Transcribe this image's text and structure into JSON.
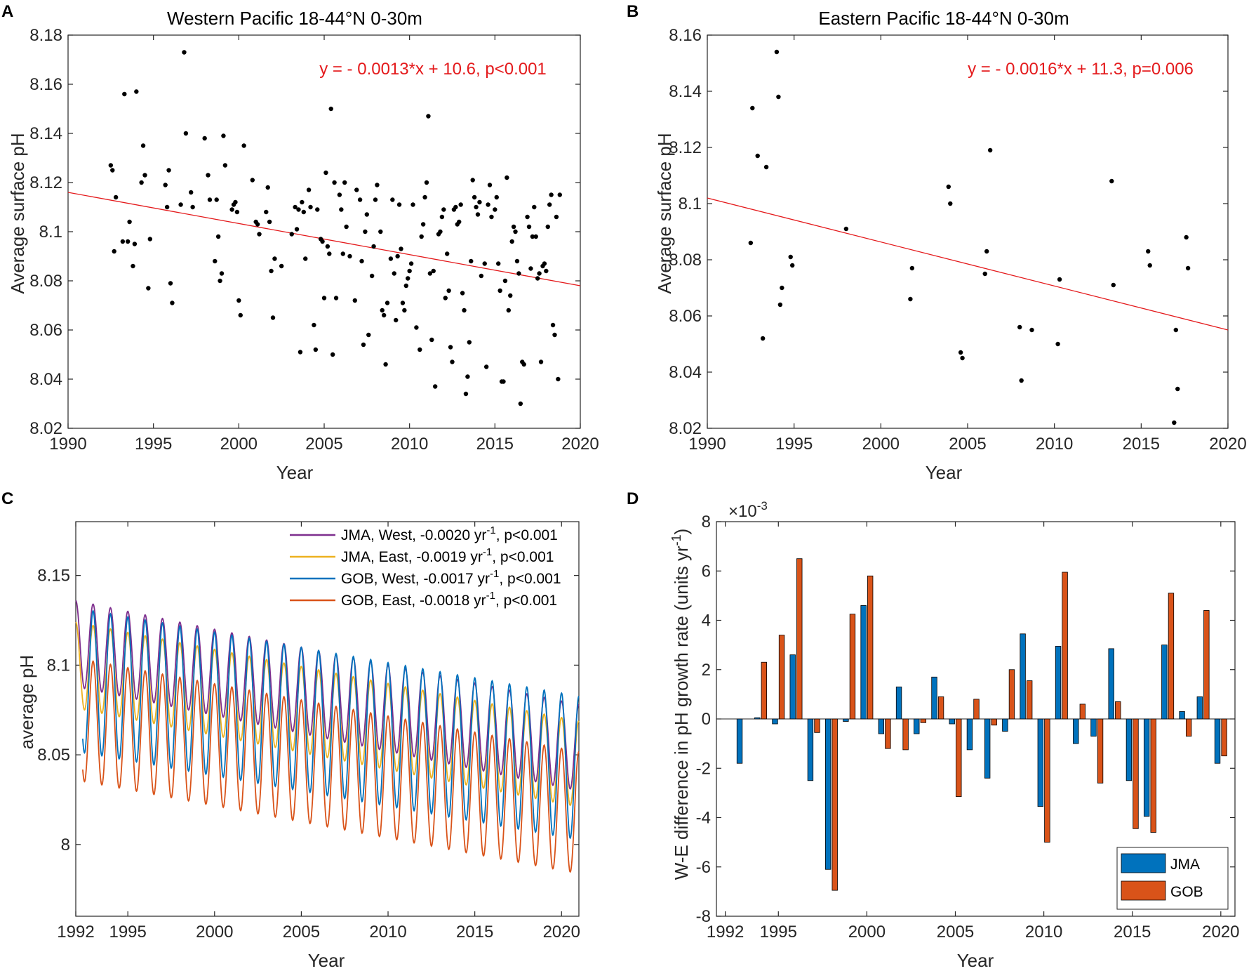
{
  "figure": {
    "panel_labels": [
      "A",
      "B",
      "C",
      "D"
    ]
  },
  "chart_data": [
    {
      "id": "A",
      "type": "scatter",
      "title": "Western Pacific 18-44°N 0-30m",
      "xlabel": "Year",
      "ylabel": "Average surface pH",
      "xlim": [
        1990,
        2020
      ],
      "ylim": [
        8.02,
        8.18
      ],
      "xticks": [
        1990,
        1995,
        2000,
        2005,
        2010,
        2015,
        2020
      ],
      "yticks": [
        8.02,
        8.04,
        8.06,
        8.08,
        8.1,
        8.12,
        8.14,
        8.16,
        8.18
      ],
      "ytick_labels": [
        "8.02",
        "8.04",
        "8.06",
        "8.08",
        "8.1",
        "8.12",
        "8.14",
        "8.16",
        "8.18"
      ],
      "annotation": "y = - 0.0013*x + 10.6, p<0.001",
      "fit": {
        "x": [
          1990,
          2020
        ],
        "y": [
          8.116,
          8.078
        ],
        "color": "#e41a1c"
      },
      "points": [
        [
          1992.5,
          8.127
        ],
        [
          1992.6,
          8.125
        ],
        [
          1992.7,
          8.092
        ],
        [
          1992.8,
          8.114
        ],
        [
          1993.2,
          8.096
        ],
        [
          1993.3,
          8.156
        ],
        [
          1993.5,
          8.096
        ],
        [
          1993.6,
          8.104
        ],
        [
          1993.8,
          8.086
        ],
        [
          1993.9,
          8.095
        ],
        [
          1994.0,
          8.157
        ],
        [
          1994.3,
          8.12
        ],
        [
          1994.4,
          8.135
        ],
        [
          1994.5,
          8.123
        ],
        [
          1994.7,
          8.077
        ],
        [
          1994.8,
          8.097
        ],
        [
          1995.7,
          8.119
        ],
        [
          1995.8,
          8.11
        ],
        [
          1995.9,
          8.125
        ],
        [
          1996.0,
          8.079
        ],
        [
          1996.1,
          8.071
        ],
        [
          1996.6,
          8.111
        ],
        [
          1996.8,
          8.173
        ],
        [
          1996.9,
          8.14
        ],
        [
          1997.2,
          8.116
        ],
        [
          1997.3,
          8.11
        ],
        [
          1998.0,
          8.138
        ],
        [
          1998.2,
          8.123
        ],
        [
          1998.3,
          8.113
        ],
        [
          1998.6,
          8.088
        ],
        [
          1998.7,
          8.113
        ],
        [
          1998.8,
          8.098
        ],
        [
          1998.9,
          8.08
        ],
        [
          1999.0,
          8.083
        ],
        [
          1999.1,
          8.139
        ],
        [
          1999.2,
          8.127
        ],
        [
          1999.6,
          8.109
        ],
        [
          1999.7,
          8.111
        ],
        [
          1999.8,
          8.112
        ],
        [
          1999.9,
          8.108
        ],
        [
          2000.0,
          8.072
        ],
        [
          2000.1,
          8.066
        ],
        [
          2000.3,
          8.135
        ],
        [
          2000.8,
          8.121
        ],
        [
          2001.0,
          8.104
        ],
        [
          2001.1,
          8.103
        ],
        [
          2001.2,
          8.099
        ],
        [
          2001.6,
          8.108
        ],
        [
          2001.7,
          8.118
        ],
        [
          2001.8,
          8.104
        ],
        [
          2001.9,
          8.084
        ],
        [
          2002.0,
          8.065
        ],
        [
          2002.1,
          8.089
        ],
        [
          2002.5,
          8.086
        ],
        [
          2003.1,
          8.099
        ],
        [
          2003.3,
          8.11
        ],
        [
          2003.4,
          8.101
        ],
        [
          2003.5,
          8.109
        ],
        [
          2003.6,
          8.051
        ],
        [
          2003.7,
          8.112
        ],
        [
          2003.8,
          8.108
        ],
        [
          2003.9,
          8.089
        ],
        [
          2004.1,
          8.117
        ],
        [
          2004.2,
          8.11
        ],
        [
          2004.4,
          8.062
        ],
        [
          2004.5,
          8.052
        ],
        [
          2004.6,
          8.109
        ],
        [
          2004.8,
          8.097
        ],
        [
          2004.9,
          8.096
        ],
        [
          2005.0,
          8.073
        ],
        [
          2005.1,
          8.124
        ],
        [
          2005.2,
          8.094
        ],
        [
          2005.3,
          8.091
        ],
        [
          2005.4,
          8.15
        ],
        [
          2005.5,
          8.05
        ],
        [
          2005.6,
          8.12
        ],
        [
          2005.7,
          8.073
        ],
        [
          2005.9,
          8.115
        ],
        [
          2006.0,
          8.109
        ],
        [
          2006.1,
          8.091
        ],
        [
          2006.2,
          8.12
        ],
        [
          2006.3,
          8.102
        ],
        [
          2006.5,
          8.09
        ],
        [
          2006.8,
          8.072
        ],
        [
          2006.9,
          8.117
        ],
        [
          2007.1,
          8.113
        ],
        [
          2007.2,
          8.088
        ],
        [
          2007.3,
          8.054
        ],
        [
          2007.4,
          8.1
        ],
        [
          2007.5,
          8.107
        ],
        [
          2007.6,
          8.058
        ],
        [
          2007.8,
          8.082
        ],
        [
          2007.9,
          8.094
        ],
        [
          2008.0,
          8.113
        ],
        [
          2008.1,
          8.119
        ],
        [
          2008.3,
          8.1
        ],
        [
          2008.4,
          8.068
        ],
        [
          2008.5,
          8.066
        ],
        [
          2008.6,
          8.046
        ],
        [
          2008.7,
          8.071
        ],
        [
          2008.9,
          8.089
        ],
        [
          2009.0,
          8.113
        ],
        [
          2009.1,
          8.083
        ],
        [
          2009.2,
          8.064
        ],
        [
          2009.3,
          8.09
        ],
        [
          2009.4,
          8.111
        ],
        [
          2009.5,
          8.093
        ],
        [
          2009.6,
          8.071
        ],
        [
          2009.7,
          8.068
        ],
        [
          2009.8,
          8.078
        ],
        [
          2009.9,
          8.081
        ],
        [
          2010.0,
          8.084
        ],
        [
          2010.1,
          8.087
        ],
        [
          2010.2,
          8.111
        ],
        [
          2010.4,
          8.061
        ],
        [
          2010.6,
          8.052
        ],
        [
          2010.7,
          8.098
        ],
        [
          2010.8,
          8.103
        ],
        [
          2010.9,
          8.114
        ],
        [
          2011.0,
          8.12
        ],
        [
          2011.1,
          8.147
        ],
        [
          2011.2,
          8.083
        ],
        [
          2011.3,
          8.056
        ],
        [
          2011.4,
          8.084
        ],
        [
          2011.5,
          8.037
        ],
        [
          2011.7,
          8.099
        ],
        [
          2011.8,
          8.1
        ],
        [
          2011.9,
          8.106
        ],
        [
          2012.0,
          8.109
        ],
        [
          2012.1,
          8.073
        ],
        [
          2012.2,
          8.091
        ],
        [
          2012.3,
          8.076
        ],
        [
          2012.4,
          8.053
        ],
        [
          2012.5,
          8.047
        ],
        [
          2012.6,
          8.109
        ],
        [
          2012.7,
          8.11
        ],
        [
          2012.8,
          8.103
        ],
        [
          2012.9,
          8.104
        ],
        [
          2013.0,
          8.111
        ],
        [
          2013.1,
          8.075
        ],
        [
          2013.2,
          8.068
        ],
        [
          2013.3,
          8.034
        ],
        [
          2013.4,
          8.041
        ],
        [
          2013.5,
          8.055
        ],
        [
          2013.6,
          8.088
        ],
        [
          2013.7,
          8.121
        ],
        [
          2013.8,
          8.114
        ],
        [
          2013.9,
          8.11
        ],
        [
          2014.0,
          8.107
        ],
        [
          2014.1,
          8.112
        ],
        [
          2014.2,
          8.082
        ],
        [
          2014.4,
          8.087
        ],
        [
          2014.5,
          8.045
        ],
        [
          2014.6,
          8.111
        ],
        [
          2014.7,
          8.119
        ],
        [
          2014.8,
          8.106
        ],
        [
          2015.0,
          8.109
        ],
        [
          2015.1,
          8.114
        ],
        [
          2015.2,
          8.087
        ],
        [
          2015.3,
          8.076
        ],
        [
          2015.4,
          8.039
        ],
        [
          2015.5,
          8.039
        ],
        [
          2015.6,
          8.08
        ],
        [
          2015.7,
          8.122
        ],
        [
          2015.8,
          8.068
        ],
        [
          2015.9,
          8.074
        ],
        [
          2016.0,
          8.096
        ],
        [
          2016.1,
          8.102
        ],
        [
          2016.2,
          8.1
        ],
        [
          2016.3,
          8.088
        ],
        [
          2016.4,
          8.083
        ],
        [
          2016.5,
          8.03
        ],
        [
          2016.6,
          8.047
        ],
        [
          2016.7,
          8.046
        ],
        [
          2016.9,
          8.106
        ],
        [
          2017.0,
          8.102
        ],
        [
          2017.1,
          8.085
        ],
        [
          2017.2,
          8.098
        ],
        [
          2017.3,
          8.11
        ],
        [
          2017.4,
          8.098
        ],
        [
          2017.5,
          8.081
        ],
        [
          2017.6,
          8.083
        ],
        [
          2017.7,
          8.047
        ],
        [
          2017.8,
          8.086
        ],
        [
          2017.9,
          8.087
        ],
        [
          2018.0,
          8.084
        ],
        [
          2018.1,
          8.102
        ],
        [
          2018.2,
          8.111
        ],
        [
          2018.3,
          8.115
        ],
        [
          2018.4,
          8.062
        ],
        [
          2018.5,
          8.058
        ],
        [
          2018.6,
          8.106
        ],
        [
          2018.7,
          8.04
        ],
        [
          2018.8,
          8.115
        ]
      ]
    },
    {
      "id": "B",
      "type": "scatter",
      "title": "Eastern Pacific 18-44°N 0-30m",
      "xlabel": "Year",
      "ylabel": "Average surface pH",
      "xlim": [
        1990,
        2020
      ],
      "ylim": [
        8.02,
        8.16
      ],
      "xticks": [
        1990,
        1995,
        2000,
        2005,
        2010,
        2015,
        2020
      ],
      "yticks": [
        8.02,
        8.04,
        8.06,
        8.08,
        8.1,
        8.12,
        8.14,
        8.16
      ],
      "ytick_labels": [
        "8.02",
        "8.04",
        "8.06",
        "8.08",
        "8.1",
        "8.12",
        "8.14",
        "8.16"
      ],
      "annotation": "y = - 0.0016*x + 11.3, p=0.006",
      "fit": {
        "x": [
          1990,
          2020
        ],
        "y": [
          8.102,
          8.055
        ],
        "color": "#e41a1c"
      },
      "points": [
        [
          1992.5,
          8.086
        ],
        [
          1992.6,
          8.134
        ],
        [
          1992.9,
          8.117
        ],
        [
          1993.2,
          8.052
        ],
        [
          1993.4,
          8.113
        ],
        [
          1994.0,
          8.154
        ],
        [
          1994.1,
          8.138
        ],
        [
          1994.2,
          8.064
        ],
        [
          1994.3,
          8.07
        ],
        [
          1994.8,
          8.081
        ],
        [
          1994.9,
          8.078
        ],
        [
          1998.0,
          8.091
        ],
        [
          2001.7,
          8.066
        ],
        [
          2001.8,
          8.077
        ],
        [
          2003.9,
          8.106
        ],
        [
          2004.0,
          8.1
        ],
        [
          2004.6,
          8.047
        ],
        [
          2004.7,
          8.045
        ],
        [
          2006.0,
          8.075
        ],
        [
          2006.1,
          8.083
        ],
        [
          2006.3,
          8.119
        ],
        [
          2008.0,
          8.056
        ],
        [
          2008.1,
          8.037
        ],
        [
          2008.7,
          8.055
        ],
        [
          2010.2,
          8.05
        ],
        [
          2010.3,
          8.073
        ],
        [
          2013.3,
          8.108
        ],
        [
          2013.4,
          8.071
        ],
        [
          2015.4,
          8.083
        ],
        [
          2015.5,
          8.078
        ],
        [
          2016.9,
          8.022
        ],
        [
          2017.0,
          8.055
        ],
        [
          2017.1,
          8.034
        ],
        [
          2017.6,
          8.088
        ],
        [
          2017.7,
          8.077
        ]
      ]
    },
    {
      "id": "C",
      "type": "line",
      "title": "",
      "xlabel": "Year",
      "ylabel": "average pH",
      "xlim": [
        1992,
        2021
      ],
      "ylim": [
        7.96,
        8.18
      ],
      "xticks": [
        1992,
        1995,
        2000,
        2005,
        2010,
        2015,
        2020
      ],
      "yticks": [
        8.0,
        8.05,
        8.1,
        8.15
      ],
      "ytick_labels": [
        "8",
        "8.05",
        "8.1",
        "8.15"
      ],
      "series": [
        {
          "name": "JMA, West",
          "rate": "-0.0020",
          "p": "p<0.001",
          "color": "#7e2f8e",
          "start_x": 1992.0,
          "mean_start": 8.112,
          "slope": -0.002,
          "amplitude": 0.024
        },
        {
          "name": "JMA, East",
          "rate": "-0.0019",
          "p": "p<0.001",
          "color": "#edb120",
          "start_x": 1992.0,
          "mean_start": 8.1,
          "slope": -0.0019,
          "amplitude": 0.024
        },
        {
          "name": "GOB, West",
          "rate": "-0.0017",
          "p": "p<0.001",
          "color": "#0072bd",
          "start_x": 1992.4,
          "mean_start": 8.092,
          "slope": -0.0017,
          "amplitude": 0.04
        },
        {
          "name": "GOB, East",
          "rate": "-0.0018",
          "p": "p<0.001",
          "color": "#d95319",
          "start_x": 1992.4,
          "mean_start": 8.07,
          "slope": -0.0018,
          "amplitude": 0.034
        }
      ],
      "legend_unit": "yr",
      "legend_exp": "-1"
    },
    {
      "id": "D",
      "type": "bar",
      "title": "",
      "xlabel": "Year",
      "ylabel_main": "W-E difference in pH growth rate (units yr",
      "ylabel_exp": "-1",
      "ylabel_tail": ")",
      "exponent_main": "×10",
      "exponent_sup": "-3",
      "xlim": [
        1991.5,
        2020.8
      ],
      "ylim": [
        -8,
        8
      ],
      "xticks": [
        1992,
        1995,
        2000,
        2005,
        2010,
        2015,
        2020
      ],
      "yticks": [
        -8,
        -6,
        -4,
        -2,
        0,
        2,
        4,
        6,
        8
      ],
      "years": [
        1993,
        1994,
        1995,
        1996,
        1997,
        1998,
        1999,
        2000,
        2001,
        2002,
        2003,
        2004,
        2005,
        2006,
        2007,
        2008,
        2009,
        2010,
        2011,
        2012,
        2013,
        2014,
        2015,
        2016,
        2017,
        2018,
        2019,
        2020
      ],
      "series": [
        {
          "name": "JMA",
          "color": "#0072bd",
          "values": [
            -1.8,
            0.05,
            -0.2,
            2.6,
            -2.5,
            -6.1,
            -0.1,
            4.6,
            -0.6,
            1.3,
            -0.6,
            1.7,
            -0.2,
            -1.25,
            -2.4,
            -0.5,
            3.45,
            -3.55,
            2.95,
            -1.0,
            -0.7,
            2.85,
            -2.5,
            -3.95,
            3.0,
            0.3,
            0.9,
            -1.8
          ]
        },
        {
          "name": "GOB",
          "color": "#d95319",
          "values": [
            0,
            2.3,
            3.4,
            6.5,
            -0.55,
            -6.95,
            4.25,
            5.8,
            -1.2,
            -1.25,
            -0.15,
            0.9,
            -3.15,
            0.8,
            -0.25,
            2.0,
            1.55,
            -5.0,
            5.95,
            0.6,
            -2.6,
            0.7,
            -4.45,
            -4.6,
            5.1,
            -0.7,
            4.4,
            -1.5
          ]
        }
      ]
    }
  ]
}
